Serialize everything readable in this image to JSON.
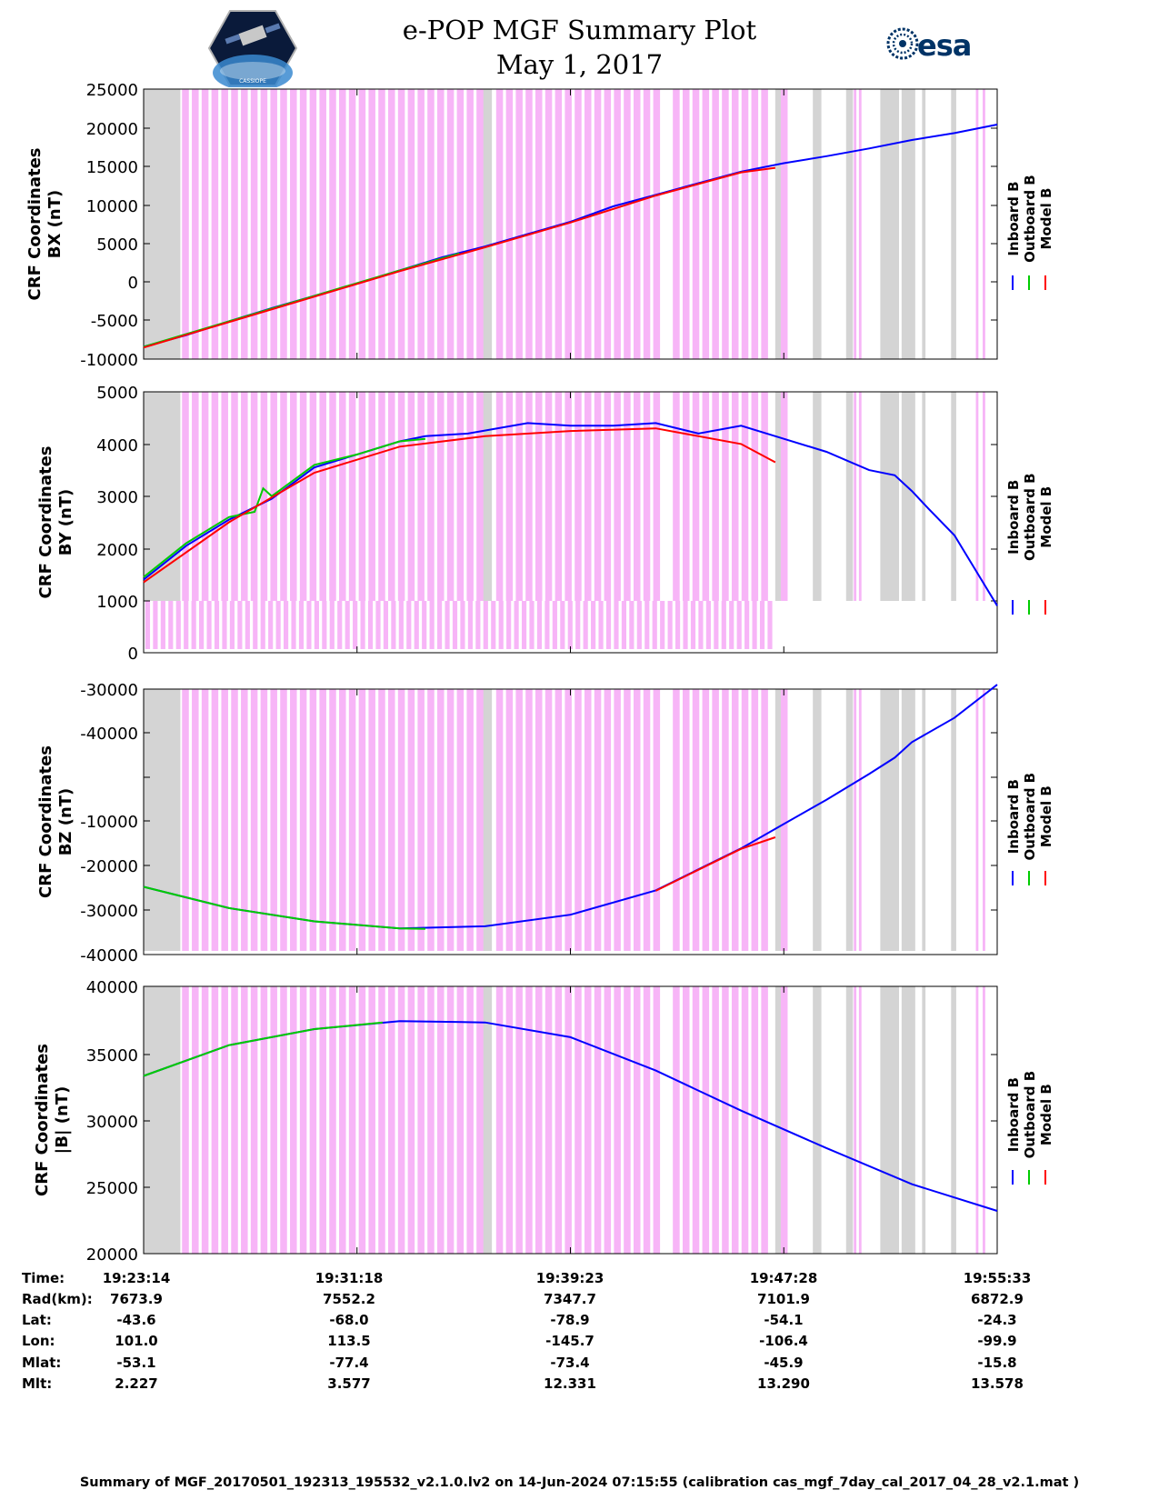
{
  "header": {
    "title": "e-POP MGF Summary Plot",
    "date": "May 1, 2017",
    "left_logo": "cassiope-logo",
    "left_logo_text": "CASSIOPE",
    "right_logo": "esa-logo",
    "right_logo_text": "esa"
  },
  "colors": {
    "inboard": "#0000ff",
    "outboard": "#00cc00",
    "model": "#ff0000",
    "magenta_band": "#f7b5f7",
    "gray_band": "#d4d4d4"
  },
  "chart_data": [
    {
      "type": "line",
      "panel": "BX",
      "ylabel": [
        "CRF Coordinates",
        "BX (nT)"
      ],
      "yticks": [
        25000,
        20000,
        15000,
        10000,
        5000,
        0,
        -5000,
        -10000
      ],
      "ylim": [
        -10000,
        25000
      ],
      "legend": [
        "Inboard B",
        "Outboard B",
        "Model B"
      ],
      "legend_position": "right",
      "series": [
        {
          "name": "Inboard B",
          "x": [
            0,
            5,
            10,
            15,
            20,
            25,
            30,
            35,
            40,
            45,
            50,
            55,
            60,
            65,
            70,
            75,
            80,
            85,
            90,
            95,
            100
          ],
          "y": [
            -8400,
            -6900,
            -5100,
            -3400,
            -1800,
            -200,
            1500,
            3200,
            4600,
            6200,
            7800,
            9800,
            11300,
            12800,
            14300,
            15400,
            16300,
            17300,
            18400,
            19300,
            20400
          ]
        },
        {
          "name": "Outboard B",
          "x": [
            0,
            10,
            20,
            30,
            37
          ],
          "y": [
            -8400,
            -5100,
            -1800,
            1500,
            3700
          ]
        },
        {
          "name": "Model B",
          "x": [
            0,
            10,
            20,
            30,
            40,
            50,
            60,
            70,
            74
          ],
          "y": [
            -8500,
            -5200,
            -1900,
            1400,
            4500,
            7700,
            11200,
            14200,
            14800
          ]
        }
      ]
    },
    {
      "type": "line",
      "panel": "BY",
      "ylabel": [
        "CRF Coordinates",
        "BY (nT)"
      ],
      "yticks": [
        5000,
        4000,
        3000,
        2000,
        1000,
        0
      ],
      "ylim": [
        0,
        5000
      ],
      "legend": [
        "Inboard B",
        "Outboard B",
        "Model B"
      ],
      "legend_position": "right",
      "series": [
        {
          "name": "Inboard B",
          "x": [
            0,
            5,
            10,
            15,
            20,
            25,
            30,
            33,
            38,
            45,
            50,
            55,
            60,
            65,
            70,
            75,
            80,
            85,
            88,
            90,
            92,
            95,
            100
          ],
          "y": [
            1400,
            2050,
            2550,
            2950,
            3550,
            3800,
            4050,
            4150,
            4200,
            4400,
            4350,
            4350,
            4400,
            4200,
            4350,
            4100,
            3850,
            3500,
            3400,
            3100,
            2750,
            2250,
            900
          ]
        },
        {
          "name": "Outboard B",
          "x": [
            0,
            5,
            10,
            13,
            14,
            15,
            20,
            25,
            30,
            33
          ],
          "y": [
            1450,
            2100,
            2600,
            2700,
            3150,
            3000,
            3600,
            3800,
            4050,
            4100
          ]
        },
        {
          "name": "Model B",
          "x": [
            0,
            10,
            20,
            30,
            40,
            50,
            60,
            70,
            74
          ],
          "y": [
            1350,
            2500,
            3450,
            3950,
            4150,
            4250,
            4300,
            4000,
            3650
          ]
        }
      ]
    },
    {
      "type": "line",
      "panel": "BZ",
      "ylabel": [
        "CRF Coordinates",
        "BZ (nT)"
      ],
      "yticks": [
        -30000,
        -40000,
        "",
        -10000,
        -20000,
        -30000,
        -40000
      ],
      "ylim": [
        -40000,
        20000
      ],
      "legend": [
        "Inboard B",
        "Outboard B",
        "Model B"
      ],
      "legend_position": "right",
      "series": [
        {
          "name": "Inboard B",
          "x": [
            0,
            10,
            20,
            30,
            40,
            50,
            60,
            70,
            75,
            80,
            85,
            88,
            90,
            95,
            100
          ],
          "y": [
            -24700,
            -29500,
            -32500,
            -34100,
            -33600,
            -31000,
            -25500,
            -16000,
            -10500,
            -5000,
            800,
            4500,
            8000,
            13500,
            21000
          ]
        },
        {
          "name": "Outboard B",
          "x": [
            0,
            10,
            20,
            30,
            33
          ],
          "y": [
            -24700,
            -29500,
            -32500,
            -34100,
            -34200
          ]
        },
        {
          "name": "Model B",
          "x": [
            60,
            70,
            74
          ],
          "y": [
            -25600,
            -16100,
            -13500
          ]
        }
      ]
    },
    {
      "type": "line",
      "panel": "B",
      "ylabel": [
        "CRF Coordinates",
        "|B| (nT)"
      ],
      "yticks": [
        40000,
        35000,
        30000,
        25000,
        20000
      ],
      "ylim": [
        20000,
        40000
      ],
      "legend": [
        "Inboard B",
        "Outboard B",
        "Model B"
      ],
      "legend_position": "right",
      "series": [
        {
          "name": "Inboard B",
          "x": [
            0,
            10,
            20,
            30,
            40,
            50,
            60,
            70,
            80,
            90,
            100
          ],
          "y": [
            33300,
            35600,
            36800,
            37400,
            37300,
            36200,
            33700,
            30700,
            27900,
            25200,
            23200
          ]
        },
        {
          "name": "Outboard B",
          "x": [
            0,
            10,
            20,
            28
          ],
          "y": [
            33300,
            35600,
            36800,
            37300
          ]
        },
        {
          "name": "Model B",
          "x": [],
          "y": []
        }
      ]
    }
  ],
  "x_axis": {
    "time_ticks": [
      "19:23:14",
      "19:31:18",
      "19:39:23",
      "19:47:28",
      "19:55:33"
    ]
  },
  "info_table": {
    "labels": [
      "Time:",
      "Rad(km):",
      "Lat:",
      "Lon:",
      "Mlat:",
      "Mlt:"
    ],
    "rows": [
      [
        "19:23:14",
        "19:31:18",
        "19:39:23",
        "19:47:28",
        "19:55:33"
      ],
      [
        "7673.9",
        "7552.2",
        "7347.7",
        "7101.9",
        "6872.9"
      ],
      [
        "-43.6",
        "-68.0",
        "-78.9",
        "-54.1",
        "-24.3"
      ],
      [
        "101.0",
        "113.5",
        "-145.7",
        "-106.4",
        "-99.9"
      ],
      [
        "-53.1",
        "-77.4",
        "-73.4",
        "-45.9",
        "-15.8"
      ],
      [
        "2.227",
        "3.577",
        "12.331",
        "13.290",
        "13.578"
      ]
    ]
  },
  "footer": "Summary of MGF_20170501_192313_195532_v2.1.0.lv2 on 14-Jun-2024 07:15:55 (calibration cas_mgf_7day_cal_2017_04_28_v2.1.mat )"
}
